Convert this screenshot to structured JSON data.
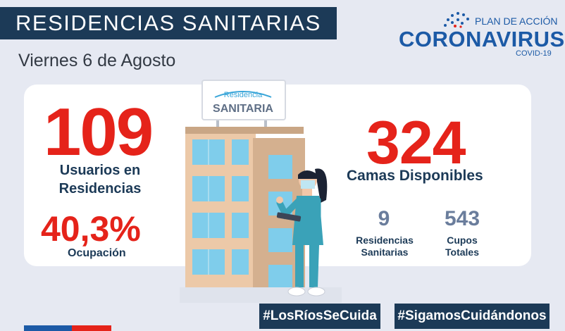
{
  "header": {
    "title": "RESIDENCIAS SANITARIAS",
    "date": "Viernes 6 de Agosto"
  },
  "logo": {
    "plan": "PLAN DE ACCIÓN",
    "name": "CORONAVIRUS",
    "sub": "COVID-19"
  },
  "sign": {
    "line1": "Residencia",
    "line2": "SANITARIA"
  },
  "stats": {
    "usuarios_value": "109",
    "usuarios_label_1": "Usuarios en",
    "usuarios_label_2": "Residencias",
    "ocupacion_value": "40,3%",
    "ocupacion_label": "Ocupación",
    "camas_value": "324",
    "camas_label": "Camas Disponibles",
    "residencias_value": "9",
    "residencias_label_1": "Residencias",
    "residencias_label_2": "Sanitarias",
    "cupos_value": "543",
    "cupos_label_1": "Cupos",
    "cupos_label_2": "Totales"
  },
  "hashtags": {
    "left": "#LosRíosSeCuida",
    "right": "#SigamosCuidándonos"
  },
  "colors": {
    "navy": "#1c3a57",
    "red": "#e5231a",
    "blue": "#1c5aa6",
    "background": "#e6e9f2"
  }
}
